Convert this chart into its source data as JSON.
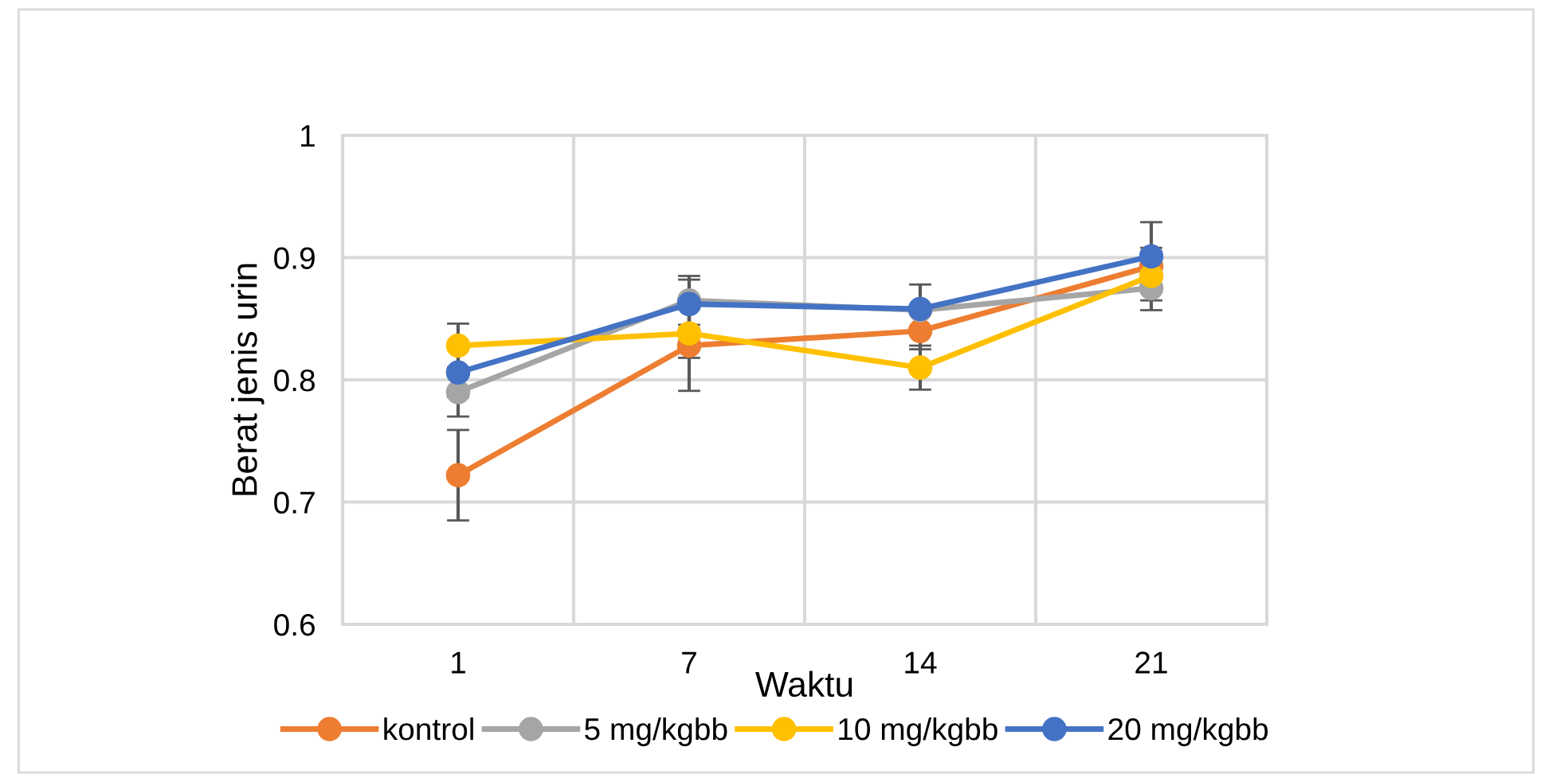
{
  "chart_data": {
    "type": "line",
    "xlabel": "Waktu",
    "ylabel": "Berat jenis urin",
    "categories": [
      "1",
      "7",
      "14",
      "21"
    ],
    "series": [
      {
        "name": "kontrol",
        "color": "#ed7d31",
        "values": [
          0.722,
          0.828,
          0.84,
          0.893
        ],
        "errors": [
          0.037,
          0.037,
          0.015,
          0.015
        ]
      },
      {
        "name": "5 mg/kgbb",
        "color": "#a5a5a5",
        "values": [
          0.79,
          0.865,
          0.857,
          0.875
        ],
        "errors": [
          0.02,
          0.02,
          null,
          0.018
        ]
      },
      {
        "name": "10 mg/kgbb",
        "color": "#ffc000",
        "values": [
          0.828,
          0.838,
          0.81,
          0.885
        ],
        "errors": [
          0.018,
          0.02,
          0.018,
          0.02
        ]
      },
      {
        "name": "20 mg/kgbb",
        "color": "#4472c4",
        "values": [
          0.806,
          0.862,
          0.858,
          0.901
        ],
        "errors": [
          0.02,
          0.02,
          0.02,
          0.028
        ]
      }
    ],
    "ylim": [
      0.6,
      1
    ],
    "yticks": [
      {
        "value": 0.6,
        "label": "0.6"
      },
      {
        "value": 0.7,
        "label": "0.7"
      },
      {
        "value": 0.8,
        "label": "0.8"
      },
      {
        "value": 0.9,
        "label": "0.9"
      },
      {
        "value": 1,
        "label": "1"
      }
    ],
    "grid": true,
    "legend": "bottom",
    "marker": "circle",
    "line_style": "solid"
  }
}
